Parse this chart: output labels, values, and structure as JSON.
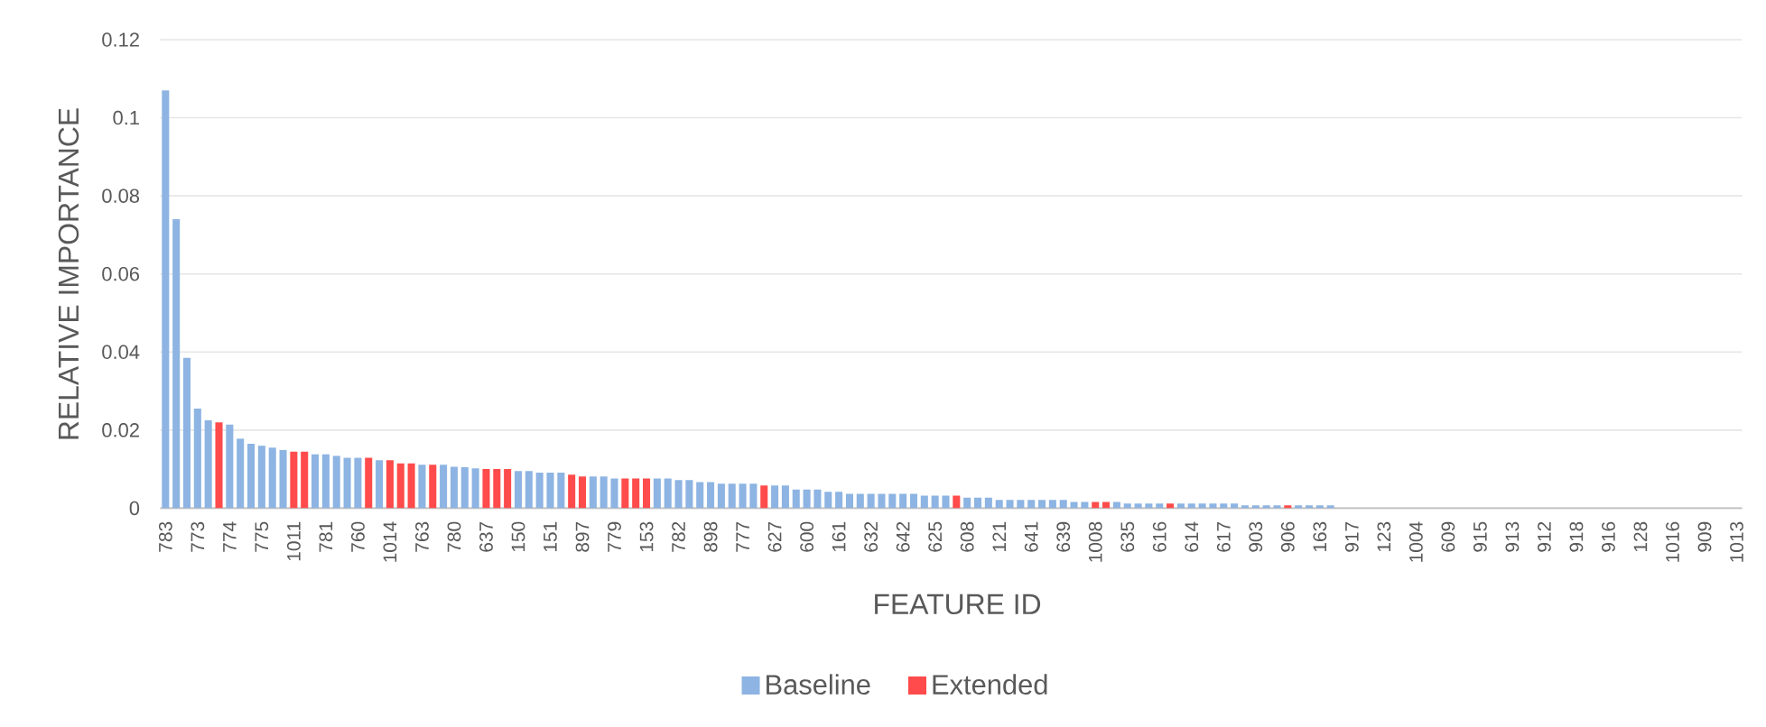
{
  "chart_data": {
    "type": "bar",
    "xlabel": "FEATURE ID",
    "ylabel": "RELATIVE IMPORTANCE",
    "categories": [
      "783",
      null,
      null,
      "773",
      null,
      null,
      "774",
      null,
      null,
      "775",
      null,
      null,
      "1011",
      null,
      null,
      "781",
      null,
      null,
      "760",
      null,
      null,
      "1014",
      null,
      null,
      "763",
      null,
      null,
      "780",
      null,
      null,
      "637",
      null,
      null,
      "150",
      null,
      null,
      "151",
      null,
      null,
      "897",
      null,
      null,
      "779",
      null,
      null,
      "153",
      null,
      null,
      "782",
      null,
      null,
      "898",
      null,
      null,
      "777",
      null,
      null,
      "627",
      null,
      null,
      "600",
      null,
      null,
      "161",
      null,
      null,
      "632",
      null,
      null,
      "642",
      null,
      null,
      "625",
      null,
      null,
      "608",
      null,
      null,
      "121",
      null,
      null,
      "641",
      null,
      null,
      "639",
      null,
      null,
      "1008",
      null,
      null,
      "635",
      null,
      null,
      "616",
      null,
      null,
      "614",
      null,
      null,
      "617",
      null,
      null,
      "903",
      null,
      null,
      "906",
      null,
      null,
      "163",
      null,
      null,
      "917",
      null,
      null,
      "123",
      null,
      null,
      "1004",
      null,
      null,
      "609",
      null,
      null,
      "915",
      null,
      null,
      "913",
      null,
      null,
      "912",
      null,
      null,
      "918",
      null,
      null,
      "916",
      null,
      null,
      "128",
      null,
      null,
      "1016",
      null,
      null,
      "909",
      null,
      null,
      "1013"
    ],
    "series": [
      {
        "name": "Baseline",
        "color": "#8db4e2",
        "values": [
          0.107,
          0.074,
          0.0385,
          0.0255,
          0.0225,
          null,
          0.0214,
          0.0178,
          0.0165,
          0.016,
          0.0155,
          0.0149,
          null,
          null,
          0.0138,
          0.0138,
          0.0134,
          0.0129,
          0.0129,
          null,
          0.0123,
          null,
          null,
          null,
          0.0111,
          null,
          0.0111,
          0.0106,
          0.0105,
          0.0102,
          null,
          null,
          null,
          0.0095,
          0.0095,
          0.0091,
          0.0091,
          0.0091,
          null,
          null,
          0.0081,
          0.0081,
          0.0076,
          null,
          null,
          null,
          0.0076,
          0.0076,
          0.0072,
          0.0072,
          0.0067,
          0.0067,
          0.0063,
          0.0063,
          0.0063,
          0.0063,
          null,
          0.0058,
          0.0058,
          0.0048,
          0.0048,
          0.0048,
          0.0042,
          0.0042,
          0.0037,
          0.0037,
          0.0037,
          0.0037,
          0.0037,
          0.0037,
          0.0037,
          0.0032,
          0.0032,
          0.0032,
          null,
          0.0027,
          0.0027,
          0.0027,
          0.0021,
          0.0021,
          0.0021,
          0.0021,
          0.0021,
          0.0021,
          0.0021,
          0.0016,
          0.0016,
          null,
          null,
          0.0016,
          0.0012,
          0.0012,
          0.0012,
          0.0012,
          null,
          0.0012,
          0.0012,
          0.0012,
          0.0012,
          0.0012,
          0.0012,
          0.0007,
          0.0007,
          0.0007,
          0.0007,
          null,
          0.0007,
          0.0007,
          0.0007,
          0.0007,
          0,
          0,
          0,
          0,
          0,
          0,
          0,
          0,
          0,
          0,
          0,
          0,
          0,
          0,
          0,
          0,
          0,
          0,
          0,
          0,
          0,
          0,
          0,
          0,
          0,
          0,
          0,
          0,
          0,
          0,
          0,
          0,
          0,
          0,
          0,
          0,
          0,
          0
        ]
      },
      {
        "name": "Extended",
        "color": "#ff4b4b",
        "values": [
          null,
          null,
          null,
          null,
          null,
          0.022,
          null,
          null,
          null,
          null,
          null,
          null,
          0.0145,
          0.0145,
          null,
          null,
          null,
          null,
          null,
          0.0129,
          null,
          0.0123,
          0.0115,
          0.0115,
          null,
          0.0111,
          null,
          null,
          null,
          null,
          0.01,
          0.01,
          0.01,
          null,
          null,
          null,
          null,
          null,
          0.0086,
          0.0081,
          null,
          null,
          null,
          0.0076,
          0.0076,
          0.0076,
          null,
          null,
          null,
          null,
          null,
          null,
          null,
          null,
          null,
          null,
          0.0058,
          null,
          null,
          null,
          null,
          null,
          null,
          null,
          null,
          null,
          null,
          null,
          null,
          null,
          null,
          null,
          null,
          null,
          0.0032,
          null,
          null,
          null,
          null,
          null,
          null,
          null,
          null,
          null,
          null,
          null,
          null,
          0.0016,
          0.0016,
          null,
          null,
          null,
          null,
          null,
          0.0012,
          null,
          null,
          null,
          null,
          null,
          null,
          null,
          null,
          null,
          null,
          0.0007,
          null,
          null,
          null,
          null,
          null,
          null,
          null,
          null,
          null,
          null,
          null,
          null,
          null,
          null,
          null,
          null,
          null,
          null,
          null,
          null,
          null,
          null,
          null,
          null,
          null,
          null,
          null,
          null,
          null,
          null,
          null,
          null,
          null,
          null,
          null,
          null,
          null,
          null,
          null,
          null,
          null,
          null
        ]
      }
    ],
    "stacked": true,
    "ylim": [
      0,
      0.12
    ],
    "yticks": [
      0,
      0.02,
      0.04,
      0.06,
      0.08,
      0.1,
      0.12
    ],
    "grid": "y",
    "legend": "bottom"
  }
}
